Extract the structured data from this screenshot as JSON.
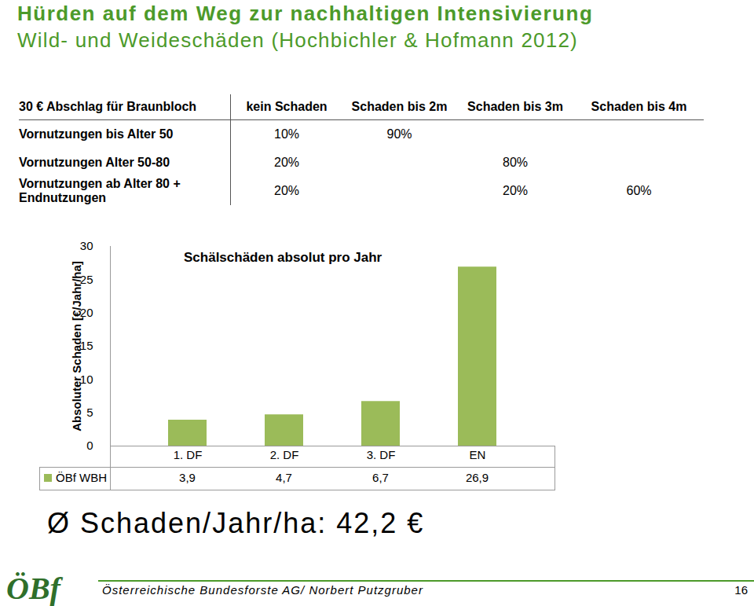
{
  "header": {
    "title": "Hürden auf dem Weg zur nachhaltigen Intensivierung",
    "subtitle": "Wild- und Weideschäden (Hochbichler & Hofmann 2012)"
  },
  "table": {
    "columns": [
      "30 € Abschlag für Braunbloch",
      "kein Schaden",
      "Schaden bis 2m",
      "Schaden bis 3m",
      "Schaden bis 4m"
    ],
    "rows": [
      [
        "Vornutzungen bis Alter 50",
        "10%",
        "90%",
        null,
        null
      ],
      [
        "Vornutzungen Alter 50-80",
        "20%",
        null,
        "80%",
        null
      ],
      [
        "Vornutzungen ab Alter 80 + Endnutzungen",
        "20%",
        null,
        "20%",
        "60%"
      ]
    ]
  },
  "chart_data": {
    "type": "bar",
    "title": "Schälschäden absolut pro Jahr",
    "y_label": "Absoluter Schaden [€/Jahr/ha]",
    "categories": [
      "1. DF",
      "2. DF",
      "3. DF",
      "EN"
    ],
    "series": [
      {
        "name": "ÖBf WBH",
        "color": "#9bbb59",
        "values": [
          3.9,
          4.7,
          6.7,
          26.9
        ],
        "value_labels": [
          "3,9",
          "4,7",
          "6,7",
          "26,9"
        ]
      }
    ],
    "ylim": [
      0,
      30
    ],
    "yticks": [
      0,
      5,
      10,
      15,
      20,
      25,
      30
    ],
    "grid": false
  },
  "annotation": "Ø Schaden/Jahr/ha: 42,2 €",
  "footer": {
    "logo": "ÖBf",
    "text": "Österreichische Bundesforste AG/ Norbert Putzgruber",
    "page": "16"
  }
}
